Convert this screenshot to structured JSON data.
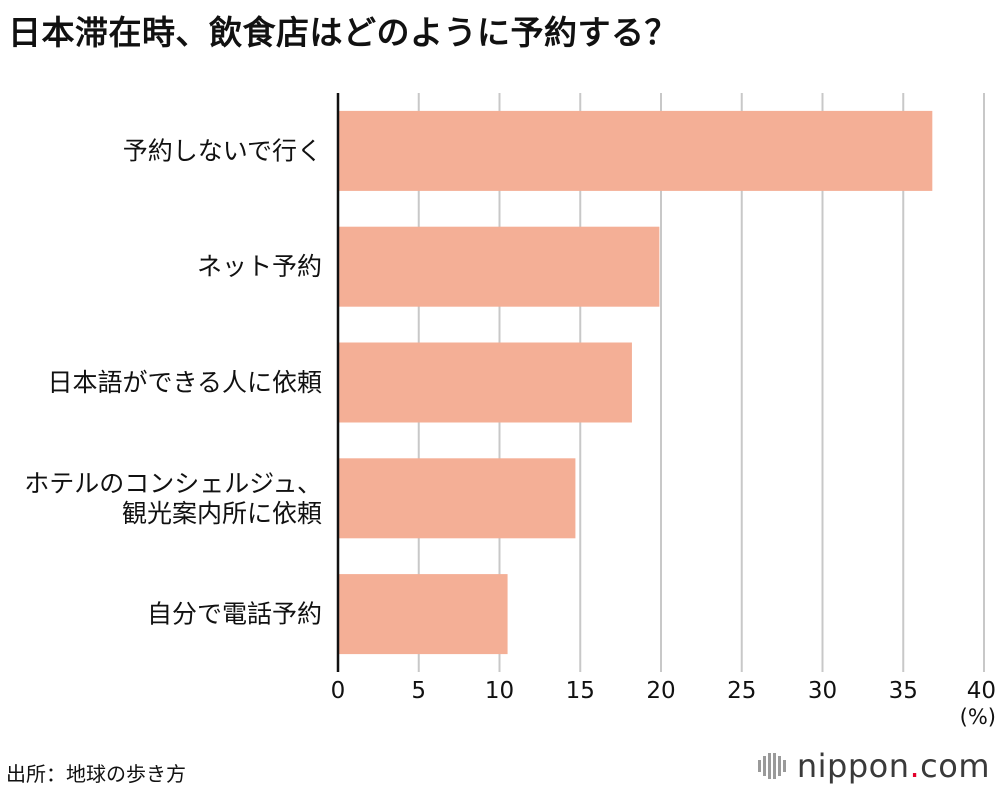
{
  "title": "日本滞在時、飲食店はどのように予約する？",
  "source": "出所：地球の歩き方",
  "logo": {
    "name": "nippon",
    "dot": ".",
    "tld": "com"
  },
  "chart_data": {
    "type": "bar",
    "orientation": "horizontal",
    "categories": [
      [
        "予約しないで行く"
      ],
      [
        "ネット予約"
      ],
      [
        "日本語ができる人に依頼"
      ],
      [
        "ホテルのコンシェルジュ、",
        "観光案内所に依頼"
      ],
      [
        "自分で電話予約"
      ]
    ],
    "values": [
      36.8,
      19.9,
      18.2,
      14.7,
      10.5
    ],
    "x_ticks": [
      "0",
      "5",
      "10",
      "15",
      "20",
      "25",
      "30",
      "35",
      "40"
    ],
    "xlim": [
      0,
      40
    ],
    "x_unit": "(%)",
    "grid": true,
    "bar_color": "#f4af96",
    "grid_color": "#c8c8c8"
  }
}
